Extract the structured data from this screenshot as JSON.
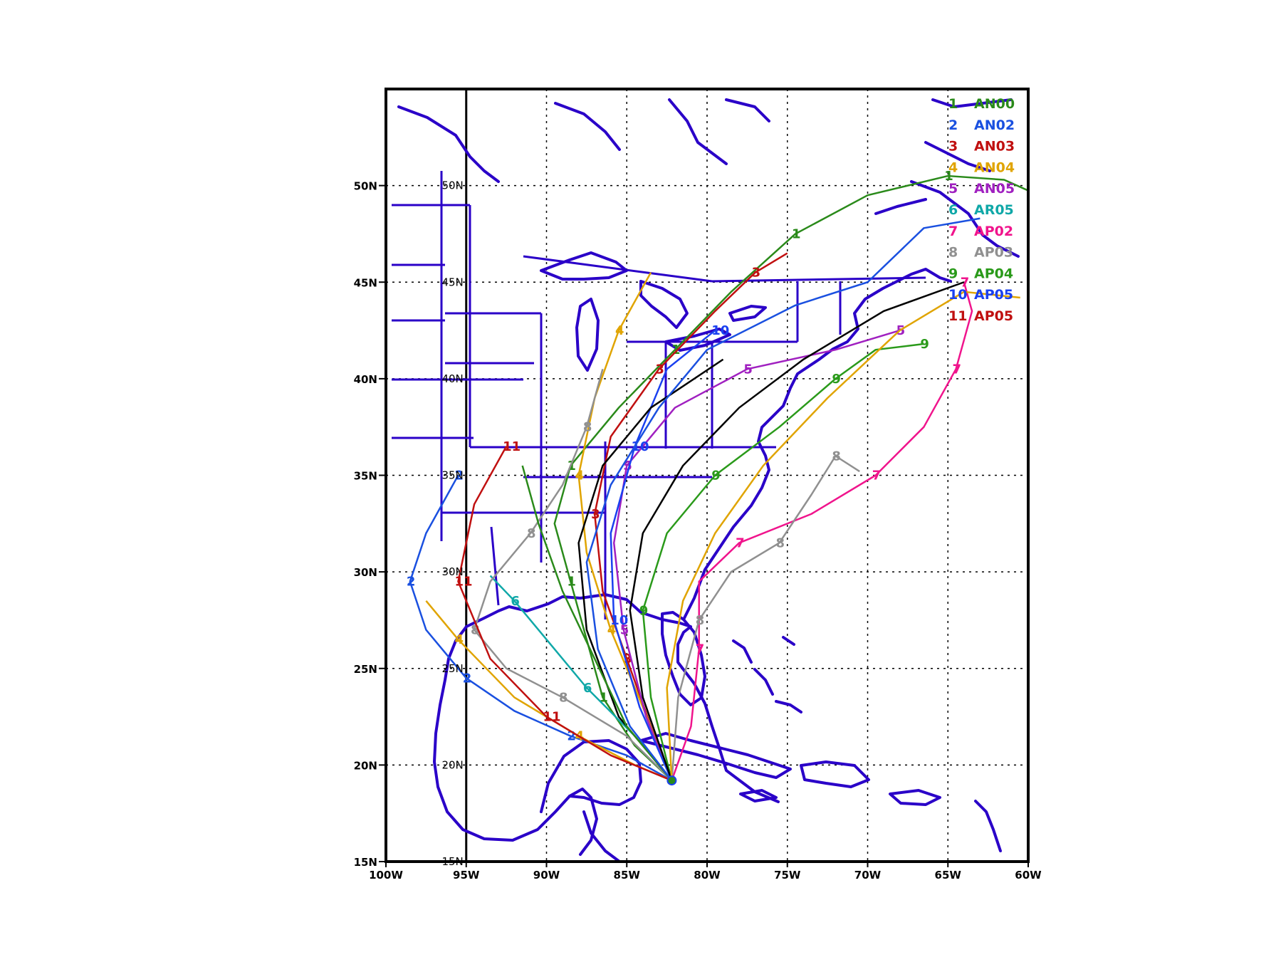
{
  "map": {
    "region": "Eastern United States, Gulf of Mexico and western Atlantic",
    "lon_range": [
      -100,
      -60
    ],
    "lat_range": [
      15,
      55
    ],
    "frame_color": "#000000",
    "coastline_color": "#2a00c8",
    "grid": "dotted",
    "legend_placement": "top-right"
  },
  "axes": {
    "lon_ticks": [
      {
        "lon": -100,
        "label": "100W"
      },
      {
        "lon": -95,
        "label": "95W"
      },
      {
        "lon": -90,
        "label": "90W"
      },
      {
        "lon": -85,
        "label": "85W"
      },
      {
        "lon": -80,
        "label": "80W"
      },
      {
        "lon": -75,
        "label": "75W"
      },
      {
        "lon": -70,
        "label": "70W"
      },
      {
        "lon": -65,
        "label": "65W"
      },
      {
        "lon": -60,
        "label": "60W"
      }
    ],
    "lat_ticks": [
      {
        "lat": 15,
        "label": "15N"
      },
      {
        "lat": 20,
        "label": "20N"
      },
      {
        "lat": 25,
        "label": "25N"
      },
      {
        "lat": 30,
        "label": "30N"
      },
      {
        "lat": 35,
        "label": "35N"
      },
      {
        "lat": 40,
        "label": "40N"
      },
      {
        "lat": 45,
        "label": "45N"
      },
      {
        "lat": 50,
        "label": "50N"
      }
    ],
    "inner_lat_labels_lon": -95,
    "inner_lon_line": -95
  },
  "legend": [
    {
      "num": "1",
      "label": "AN00",
      "color": "#2a8a1a"
    },
    {
      "num": "2",
      "label": "AN02",
      "color": "#1a50e0"
    },
    {
      "num": "3",
      "label": "AN03",
      "color": "#c01010"
    },
    {
      "num": "4",
      "label": "AN04",
      "color": "#e0a400"
    },
    {
      "num": "5",
      "label": "AN05",
      "color": "#a020c0"
    },
    {
      "num": "6",
      "label": "AR05",
      "color": "#10a8a8"
    },
    {
      "num": "7",
      "label": "AP02",
      "color": "#f0148c"
    },
    {
      "num": "8",
      "label": "AP03",
      "color": "#909090"
    },
    {
      "num": "9",
      "label": "AP04",
      "color": "#2a9a1a"
    },
    {
      "num": "10",
      "label": "AP05",
      "color": "#1a40f0"
    },
    {
      "num": "11",
      "label": "AP05",
      "color": "#c01010"
    }
  ],
  "tracks": [
    {
      "id": "1",
      "color": "#2a8a1a",
      "points": [
        [
          -82.2,
          19.2
        ],
        [
          -84.5,
          21
        ],
        [
          -86.5,
          23.5
        ],
        [
          -87.5,
          26.5
        ],
        [
          -88.5,
          29.5
        ],
        [
          -89.5,
          32.5
        ],
        [
          -88.5,
          35.5
        ],
        [
          -85.5,
          38.5
        ],
        [
          -82,
          41.5
        ],
        [
          -78.5,
          44.5
        ],
        [
          -74.5,
          47.5
        ],
        [
          -70,
          49.5
        ],
        [
          -65,
          50.5
        ],
        [
          -61.5,
          50.3
        ],
        [
          -58,
          49
        ]
      ]
    },
    {
      "id": "2",
      "color": "#1a50e0",
      "points": [
        [
          -82.2,
          19.2
        ],
        [
          -85,
          20.5
        ],
        [
          -88.5,
          21.5
        ],
        [
          -92,
          22.8
        ],
        [
          -95,
          24.5
        ],
        [
          -97.5,
          27
        ],
        [
          -98.5,
          29.5
        ],
        [
          -97.5,
          32
        ],
        [
          -95.5,
          35
        ]
      ]
    },
    {
      "id": "3",
      "color": "#c01010",
      "points": [
        [
          -82.2,
          19.2
        ],
        [
          -83.5,
          22
        ],
        [
          -85,
          25.5
        ],
        [
          -86.5,
          29
        ],
        [
          -87,
          33
        ],
        [
          -86,
          37
        ],
        [
          -83,
          40.5
        ],
        [
          -79.5,
          43.5
        ],
        [
          -77,
          45.5
        ],
        [
          -75,
          46.5
        ]
      ]
    },
    {
      "id": "4",
      "color": "#e0a400",
      "points": [
        [
          -82.2,
          19.2
        ],
        [
          -84.5,
          20
        ],
        [
          -88,
          21.5
        ],
        [
          -92,
          23.5
        ],
        [
          -95.5,
          26.5
        ],
        [
          -97.5,
          28.5
        ]
      ]
    },
    {
      "id": "4b",
      "color": "#e0a400",
      "points": [
        [
          -82.2,
          19.2
        ],
        [
          -84,
          23
        ],
        [
          -86,
          27
        ],
        [
          -87.5,
          31
        ],
        [
          -88,
          35
        ],
        [
          -87,
          39
        ],
        [
          -85.5,
          42.5
        ],
        [
          -83.5,
          45.5
        ]
      ]
    },
    {
      "id": "5",
      "color": "#a020c0",
      "points": [
        [
          -82.2,
          19.2
        ],
        [
          -83.8,
          22.5
        ],
        [
          -85.2,
          27
        ],
        [
          -85.8,
          31.5
        ],
        [
          -85,
          35.5
        ],
        [
          -82,
          38.5
        ],
        [
          -77.5,
          40.5
        ],
        [
          -72,
          41.5
        ],
        [
          -68,
          42.5
        ]
      ]
    },
    {
      "id": "6",
      "color": "#10a8a8",
      "points": [
        [
          -82.2,
          19.2
        ],
        [
          -84.5,
          21.5
        ],
        [
          -87.5,
          24
        ],
        [
          -90,
          26.5
        ],
        [
          -92,
          28.5
        ],
        [
          -93.5,
          29.8
        ]
      ]
    },
    {
      "id": "7",
      "color": "#f0148c",
      "points": [
        [
          -82.2,
          19.2
        ],
        [
          -81,
          22
        ],
        [
          -80.5,
          26
        ],
        [
          -80.5,
          29.5
        ],
        [
          -78,
          31.5
        ],
        [
          -73.5,
          33
        ],
        [
          -69.5,
          35
        ],
        [
          -66.5,
          37.5
        ],
        [
          -64.5,
          40.5
        ],
        [
          -63.5,
          43.5
        ],
        [
          -64,
          45
        ]
      ]
    },
    {
      "id": "8",
      "color": "#909090",
      "points": [
        [
          -82.2,
          19.2
        ],
        [
          -85,
          21.5
        ],
        [
          -89,
          23.5
        ],
        [
          -92.5,
          25
        ],
        [
          -94.5,
          27
        ],
        [
          -93.5,
          29.5
        ],
        [
          -91,
          32
        ],
        [
          -89,
          34.5
        ],
        [
          -87.5,
          37.5
        ],
        [
          -86.5,
          40.5
        ]
      ]
    },
    {
      "id": "8b",
      "color": "#909090",
      "points": [
        [
          -82.2,
          19.2
        ],
        [
          -81.8,
          23.5
        ],
        [
          -80.5,
          27.5
        ],
        [
          -78.5,
          30
        ],
        [
          -75.5,
          31.5
        ],
        [
          -73.5,
          34
        ],
        [
          -72,
          36
        ],
        [
          -70.5,
          35.2
        ]
      ]
    },
    {
      "id": "9",
      "color": "#2a9a1a",
      "points": [
        [
          -82.2,
          19.2
        ],
        [
          -83.5,
          23.5
        ],
        [
          -84,
          28
        ],
        [
          -82.5,
          32
        ],
        [
          -79.5,
          35
        ],
        [
          -75.5,
          37.5
        ],
        [
          -72,
          40
        ],
        [
          -69.5,
          41.5
        ],
        [
          -66.5,
          41.8
        ]
      ]
    },
    {
      "id": "10",
      "color": "#1a40f0",
      "points": [
        [
          -82.2,
          19.2
        ],
        [
          -84.2,
          23
        ],
        [
          -85.8,
          27.5
        ],
        [
          -86,
          32
        ],
        [
          -84.5,
          36.5
        ],
        [
          -82.5,
          40.5
        ],
        [
          -79.5,
          42.5
        ]
      ]
    },
    {
      "id": "11",
      "color": "#c01010",
      "points": [
        [
          -82.2,
          19.2
        ],
        [
          -86,
          20.5
        ],
        [
          -90,
          22.5
        ],
        [
          -93.5,
          25.5
        ],
        [
          -95.5,
          29.5
        ],
        [
          -94.5,
          33.5
        ],
        [
          -92.5,
          36.5
        ]
      ]
    },
    {
      "id": "k1",
      "color": "#000000",
      "points": [
        [
          -82.2,
          19.2
        ],
        [
          -84,
          23.5
        ],
        [
          -84.8,
          28
        ],
        [
          -84,
          32
        ],
        [
          -81.5,
          35.5
        ],
        [
          -78,
          38.5
        ],
        [
          -74,
          41
        ],
        [
          -69,
          43.5
        ],
        [
          -64,
          45
        ]
      ]
    },
    {
      "id": "k2",
      "color": "#000000",
      "points": [
        [
          -82.2,
          19.2
        ],
        [
          -85.5,
          22.5
        ],
        [
          -87.5,
          27
        ],
        [
          -88,
          31.5
        ],
        [
          -86.5,
          35.5
        ],
        [
          -83.5,
          38.5
        ],
        [
          -79,
          41
        ]
      ]
    },
    {
      "id": "g2",
      "color": "#2a8a1a",
      "points": [
        [
          -82.2,
          19.2
        ],
        [
          -85,
          22
        ],
        [
          -87,
          25.5
        ],
        [
          -89,
          29
        ],
        [
          -90.5,
          32.5
        ],
        [
          -91.5,
          35.5
        ]
      ]
    },
    {
      "id": "b2",
      "color": "#1a50e0",
      "points": [
        [
          -82.2,
          19.2
        ],
        [
          -84.8,
          22
        ],
        [
          -86.8,
          26
        ],
        [
          -87.5,
          30.5
        ],
        [
          -86,
          34.5
        ],
        [
          -83,
          38.5
        ],
        [
          -80,
          41.5
        ],
        [
          -74.5,
          43.8
        ],
        [
          -70,
          45
        ],
        [
          -66.5,
          47.8
        ],
        [
          -63,
          48.3
        ]
      ]
    },
    {
      "id": "o2",
      "color": "#e0a400",
      "points": [
        [
          -82.2,
          19.2
        ],
        [
          -82.5,
          24
        ],
        [
          -81.5,
          28.5
        ],
        [
          -79.5,
          32
        ],
        [
          -76.5,
          35.5
        ],
        [
          -72.5,
          39
        ],
        [
          -68,
          42.5
        ],
        [
          -64,
          44.5
        ],
        [
          -60.5,
          44.2
        ]
      ]
    }
  ]
}
